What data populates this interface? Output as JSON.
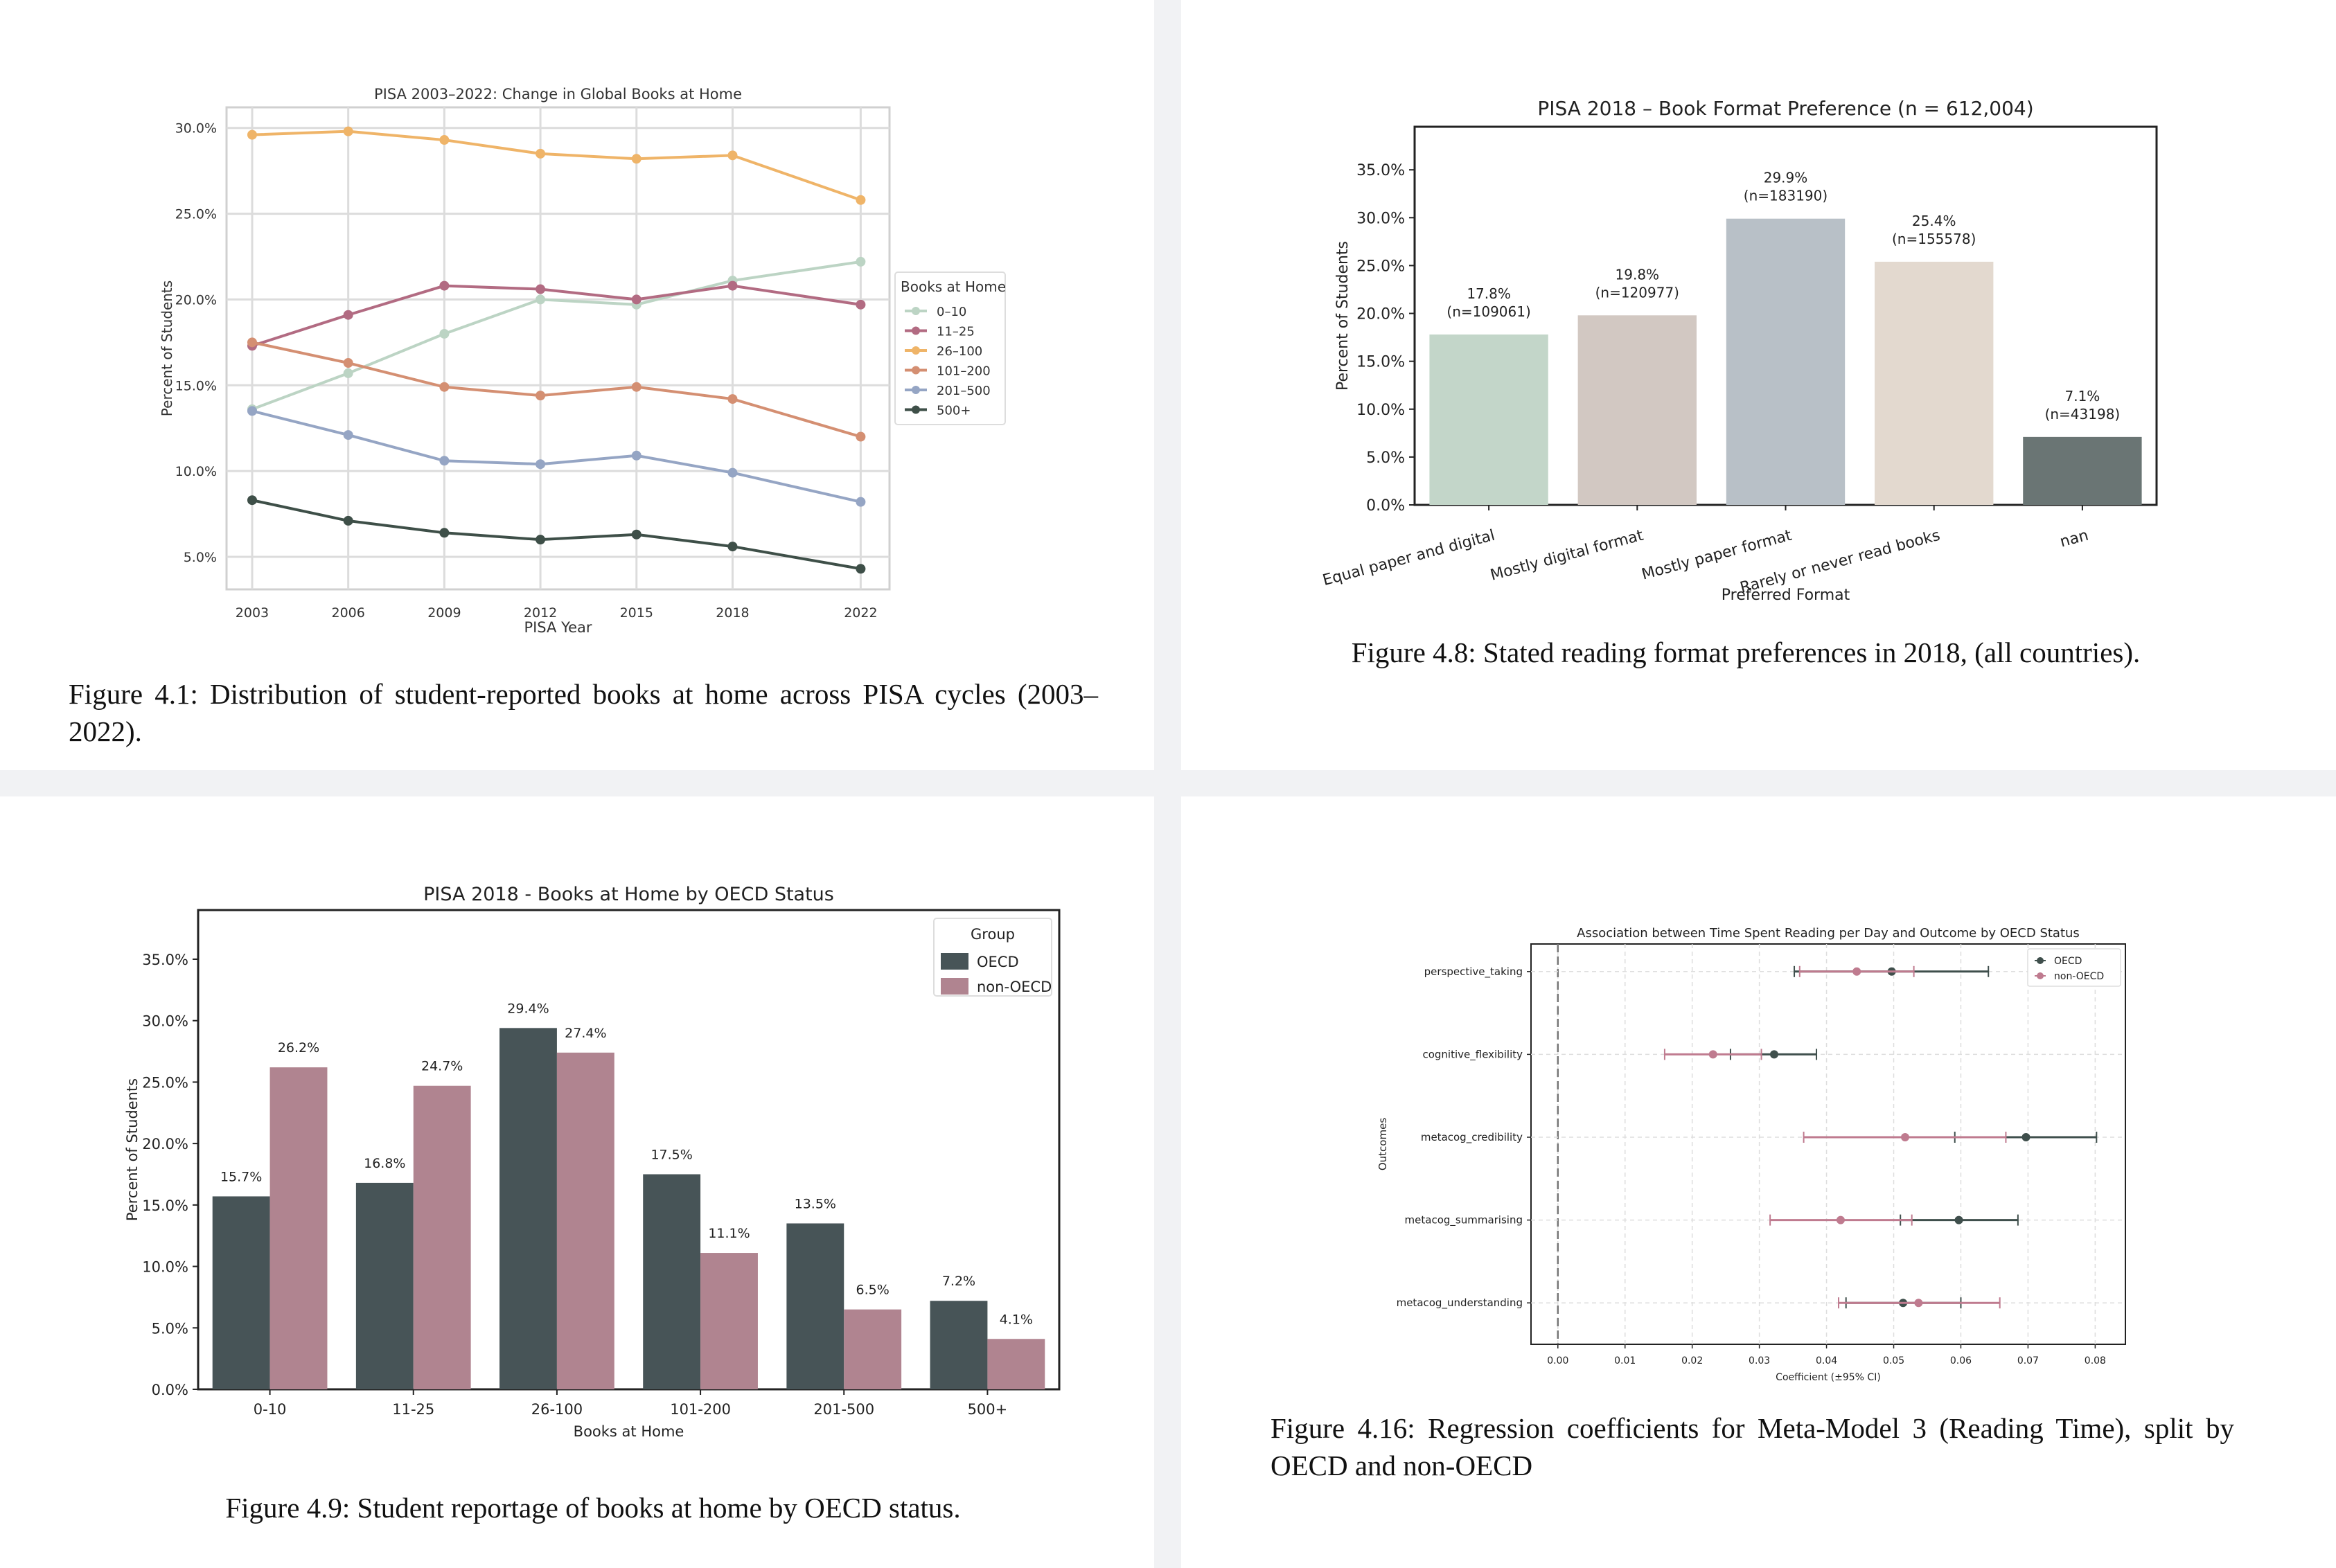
{
  "figures": [
    {
      "caption": "Figure 4.1:  Distribution of student-reported books at home across PISA cycles (2003–2022)."
    },
    {
      "caption": "Figure 4.8: Stated reading format preferences in 2018, (all countries)."
    },
    {
      "caption": "Figure 4.9: Student reportage of books at home by OECD status."
    },
    {
      "caption": "Figure 4.16: Regression coefficients for Meta-Model 3 (Reading Time), split by OECD and non-OECD"
    }
  ],
  "chart_data": [
    {
      "type": "line",
      "title": "PISA 2003–2022: Change in Global Books at Home",
      "xlabel": "PISA Year",
      "ylabel": "Percent of Students",
      "x": [
        2003,
        2006,
        2009,
        2012,
        2015,
        2018,
        2022
      ],
      "x_ticks": [
        "2003",
        "2006",
        "2009",
        "2012",
        "2015",
        "2018",
        "2022"
      ],
      "y_ticks": [
        "5.0%",
        "10.0%",
        "15.0%",
        "20.0%",
        "25.0%",
        "30.0%"
      ],
      "ylim": [
        3.1,
        31.2
      ],
      "grid": true,
      "legend_title": "Books at Home",
      "legend_placement": "right outside",
      "series": [
        {
          "name": "0–10",
          "color": "#bcd4c4",
          "values": [
            13.6,
            15.7,
            18.0,
            20.0,
            19.7,
            21.1,
            22.2
          ]
        },
        {
          "name": "11–25",
          "color": "#b26b82",
          "values": [
            17.3,
            19.1,
            20.8,
            20.6,
            20.0,
            20.8,
            19.7
          ]
        },
        {
          "name": "26–100",
          "color": "#efb468",
          "values": [
            29.6,
            29.8,
            29.3,
            28.5,
            28.2,
            28.4,
            25.8
          ]
        },
        {
          "name": "101–200",
          "color": "#d48f72",
          "values": [
            17.5,
            16.3,
            14.9,
            14.4,
            14.9,
            14.2,
            12.0
          ]
        },
        {
          "name": "201–500",
          "color": "#95a5c4",
          "values": [
            13.5,
            12.1,
            10.6,
            10.4,
            10.9,
            9.9,
            8.2
          ]
        },
        {
          "name": "500+",
          "color": "#3e4f48",
          "values": [
            8.3,
            7.1,
            6.4,
            6.0,
            6.3,
            5.6,
            4.3
          ]
        }
      ]
    },
    {
      "type": "bar",
      "title": "PISA 2018 – Book Format Preference (n = 612,004)",
      "xlabel": "Preferred Format",
      "ylabel": "Percent of Students",
      "categories": [
        "Equal paper and digital",
        "Mostly digital format",
        "Mostly paper format",
        "Rarely or never read books",
        "nan"
      ],
      "values": [
        17.8,
        19.8,
        29.9,
        25.4,
        7.1
      ],
      "labels": [
        "17.8%",
        "19.8%",
        "29.9%",
        "25.4%",
        "7.1%"
      ],
      "counts": [
        "(n=109061)",
        "(n=120977)",
        "(n=183190)",
        "(n=155578)",
        "(n=43198)"
      ],
      "colors": [
        "#c3d6c9",
        "#d2c8c2",
        "#b8c0c7",
        "#e3d9cf",
        "#6a7574"
      ],
      "y_ticks": [
        "0.0%",
        "5.0%",
        "10.0%",
        "15.0%",
        "20.0%",
        "25.0%",
        "30.0%",
        "35.0%"
      ],
      "ylim": [
        0,
        39.5
      ],
      "grid": false
    },
    {
      "type": "bar",
      "title": "PISA 2018 - Books at Home by OECD Status",
      "xlabel": "Books at Home",
      "ylabel": "Percent of Students",
      "categories": [
        "0-10",
        "11-25",
        "26-100",
        "101-200",
        "201-500",
        "500+"
      ],
      "legend_title": "Group",
      "legend_placement": "top-right",
      "series": [
        {
          "name": "OECD",
          "color": "#475457",
          "values": [
            15.7,
            16.8,
            29.4,
            17.5,
            13.5,
            7.2
          ],
          "labels": [
            "15.7%",
            "16.8%",
            "29.4%",
            "17.5%",
            "13.5%",
            "7.2%"
          ]
        },
        {
          "name": "non-OECD",
          "color": "#b08490",
          "values": [
            26.2,
            24.7,
            27.4,
            11.1,
            6.5,
            4.1
          ],
          "labels": [
            "26.2%",
            "24.7%",
            "27.4%",
            "11.1%",
            "6.5%",
            "4.1%"
          ]
        }
      ],
      "y_ticks": [
        "0.0%",
        "5.0%",
        "10.0%",
        "15.0%",
        "20.0%",
        "25.0%",
        "30.0%",
        "35.0%"
      ],
      "ylim": [
        0,
        39
      ],
      "grid": false
    },
    {
      "type": "scatter",
      "subtype": "forest plot with error bars",
      "title": "Association between Time Spent Reading per Day and Outcome by OECD Status",
      "xlabel": "Coefficient (±95% CI)",
      "ylabel": "Outcomes",
      "categories": [
        "perspective_taking",
        "cognitive_flexibility",
        "metacog_credibility",
        "metacog_summarising",
        "metacog_understanding"
      ],
      "x_ticks": [
        "0.00",
        "0.01",
        "0.02",
        "0.03",
        "0.04",
        "0.05",
        "0.06",
        "0.07",
        "0.08"
      ],
      "xlim": [
        -0.004,
        0.0845
      ],
      "reference_line": 0,
      "grid": true,
      "legend_placement": "top-right",
      "series": [
        {
          "name": "OECD",
          "color": "#3f4f4c",
          "estimate": [
            0.0497,
            0.0322,
            0.0697,
            0.0597,
            0.0514
          ],
          "ci_low": [
            0.0352,
            0.0257,
            0.0591,
            0.051,
            0.0429
          ],
          "ci_high": [
            0.0641,
            0.0385,
            0.0802,
            0.0685,
            0.06
          ]
        },
        {
          "name": "non-OECD",
          "color": "#bf7b8f",
          "estimate": [
            0.0445,
            0.0231,
            0.0517,
            0.0421,
            0.0537
          ],
          "ci_low": [
            0.036,
            0.0159,
            0.0366,
            0.0316,
            0.0418
          ],
          "ci_high": [
            0.053,
            0.0303,
            0.0667,
            0.0527,
            0.0658
          ]
        }
      ]
    }
  ]
}
